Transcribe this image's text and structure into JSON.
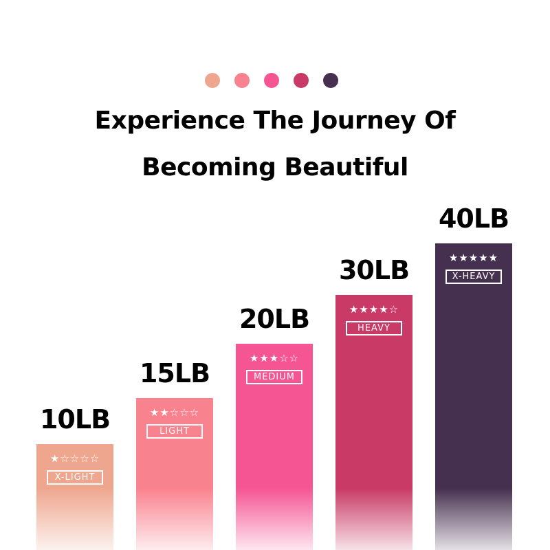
{
  "colors": [
    "#efa68e",
    "#f9828f",
    "#f55593",
    "#c93a66",
    "#46304f"
  ],
  "title_line1": "Experience The Journey Of",
  "title_line2": "Becoming Beautiful",
  "bands": [
    {
      "weight": "10LB",
      "stars": "★☆☆☆☆",
      "level": "X-LIGHT",
      "rating": 1,
      "color": "#efa68e"
    },
    {
      "weight": "15LB",
      "stars": "★★☆☆☆",
      "level": "LIGHT",
      "rating": 2,
      "color": "#f9828f"
    },
    {
      "weight": "20LB",
      "stars": "★★★☆☆",
      "level": "MEDIUM",
      "rating": 3,
      "color": "#f55593"
    },
    {
      "weight": "30LB",
      "stars": "★★★★☆",
      "level": "HEAVY",
      "rating": 4,
      "color": "#c93a66"
    },
    {
      "weight": "40LB",
      "stars": "★★★★★",
      "level": "X-HEAVY",
      "rating": 5,
      "color": "#46304f"
    }
  ]
}
